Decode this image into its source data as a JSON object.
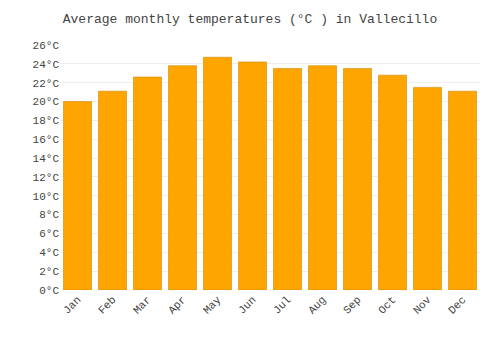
{
  "chart_data": {
    "type": "bar",
    "title": "Average monthly temperatures (°C ) in Vallecillo",
    "categories": [
      "Jan",
      "Feb",
      "Mar",
      "Apr",
      "May",
      "Jun",
      "Jul",
      "Aug",
      "Sep",
      "Oct",
      "Nov",
      "Dec"
    ],
    "values": [
      20.0,
      21.1,
      22.6,
      23.8,
      24.7,
      24.2,
      23.5,
      23.8,
      23.5,
      22.8,
      21.5,
      21.1
    ],
    "color": "#FFA500",
    "ylim": [
      0,
      26
    ],
    "yticks": [
      {
        "value": 0,
        "label": "0°C"
      },
      {
        "value": 2,
        "label": "2°C"
      },
      {
        "value": 4,
        "label": "4°C"
      },
      {
        "value": 6,
        "label": "6°C"
      },
      {
        "value": 8,
        "label": "8°C"
      },
      {
        "value": 10,
        "label": "10°C"
      },
      {
        "value": 12,
        "label": "12°C"
      },
      {
        "value": 14,
        "label": "14°C"
      },
      {
        "value": 16,
        "label": "16°C"
      },
      {
        "value": 18,
        "label": "18°C"
      },
      {
        "value": 20,
        "label": "20°C"
      },
      {
        "value": 22,
        "label": "22°C"
      },
      {
        "value": 24,
        "label": "24°C"
      },
      {
        "value": 26,
        "label": "26°C"
      }
    ],
    "grid": true
  }
}
